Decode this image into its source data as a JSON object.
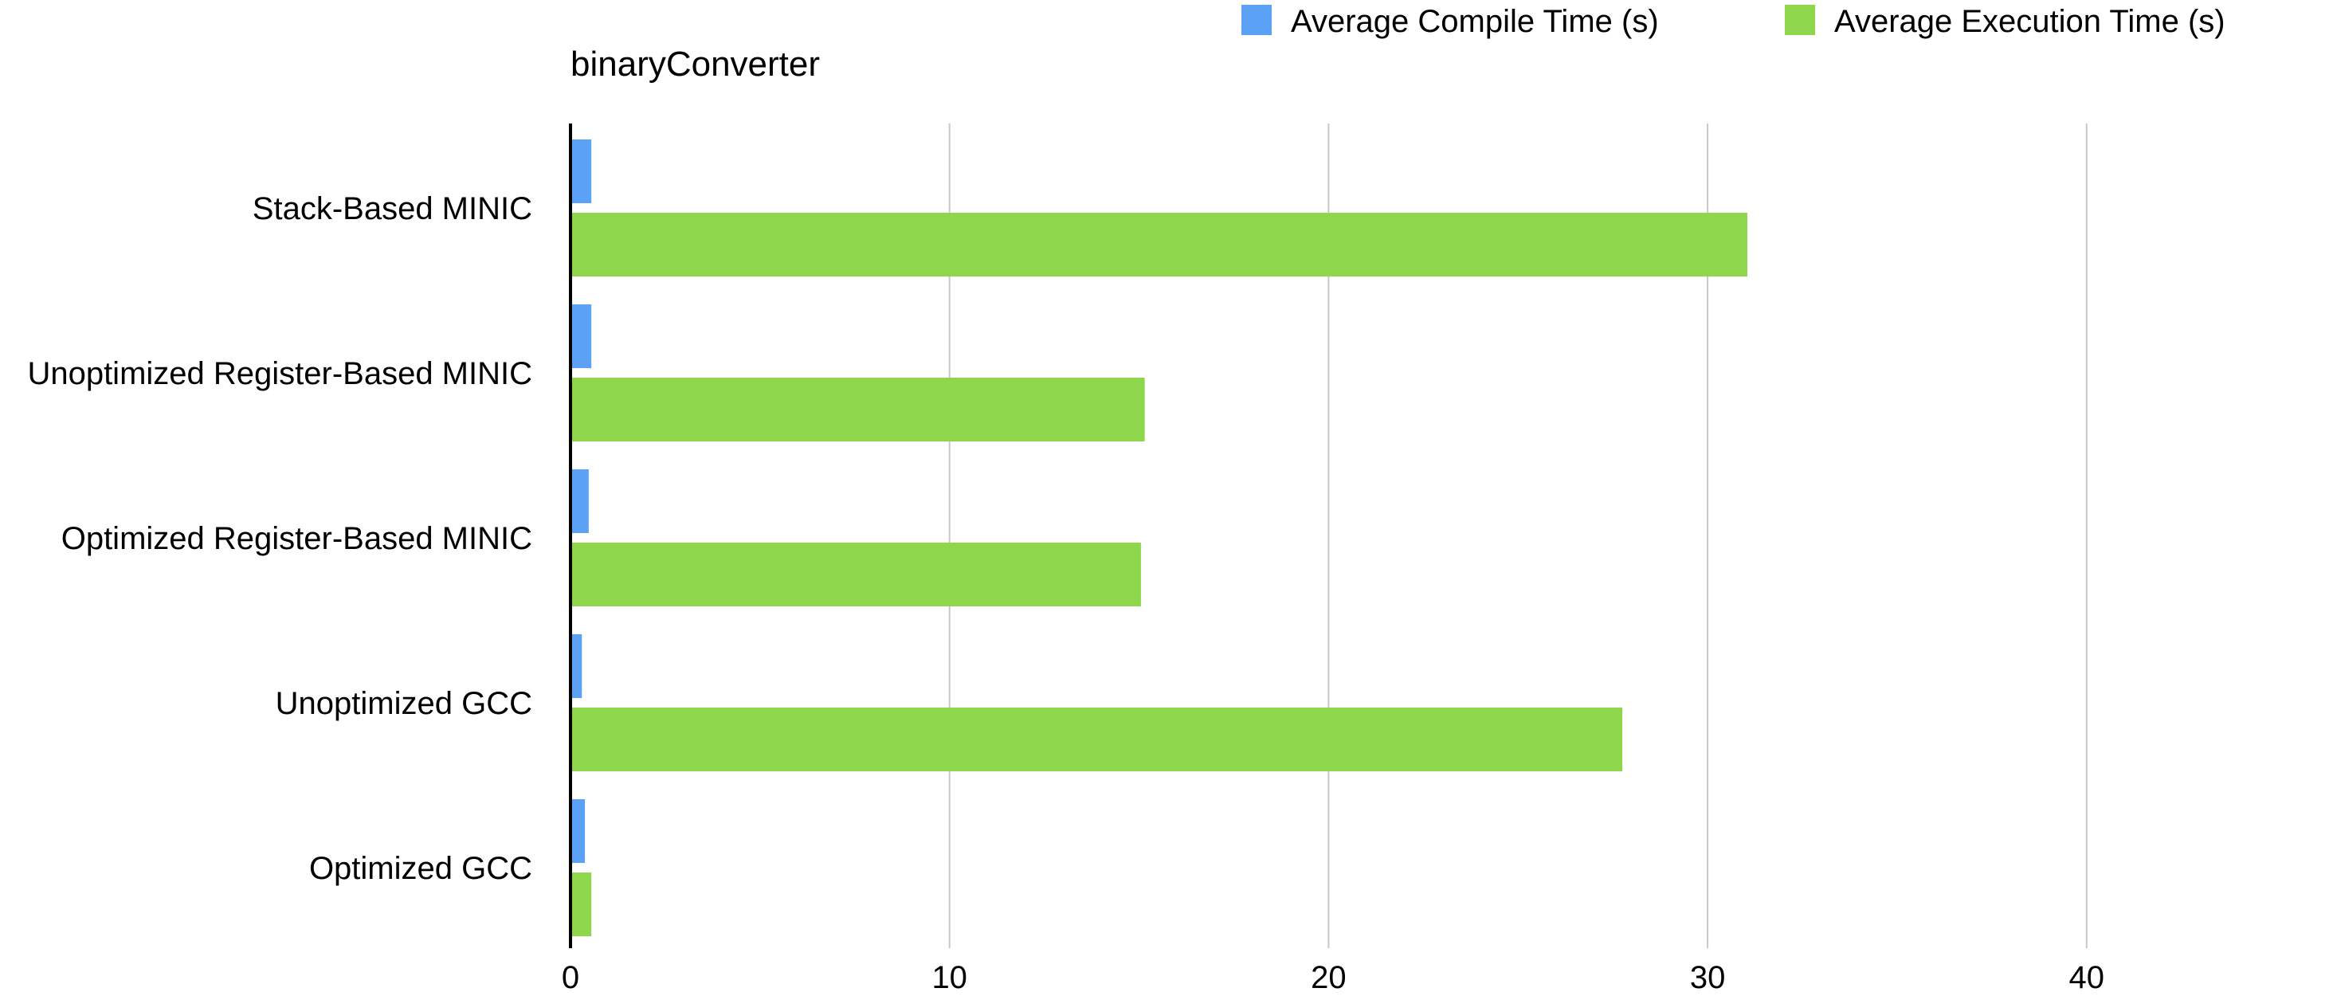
{
  "chart_data": {
    "type": "bar",
    "orientation": "horizontal",
    "title": "binaryConverter",
    "categories": [
      "Stack-Based MINIC",
      "Unoptimized Register-Based MINIC",
      "Optimized Register-Based MINIC",
      "Unoptimized GCC",
      "Optimized GCC"
    ],
    "series": [
      {
        "name": "Average Compile Time (s)",
        "color": "#5BA2F7",
        "values": [
          0.55,
          0.55,
          0.48,
          0.3,
          0.38
        ]
      },
      {
        "name": "Average Execution Time (s)",
        "color": "#8ED64B",
        "values": [
          31.05,
          15.15,
          15.05,
          27.75,
          0.55
        ]
      }
    ],
    "xlim": [
      0,
      46.5
    ],
    "x_ticks": [
      0,
      10,
      20,
      30,
      40
    ],
    "xlabel": "",
    "ylabel": "",
    "grid": true,
    "legend_position": "top-right",
    "grid_color": "#C8C8C8",
    "axis_color": "#000000"
  }
}
